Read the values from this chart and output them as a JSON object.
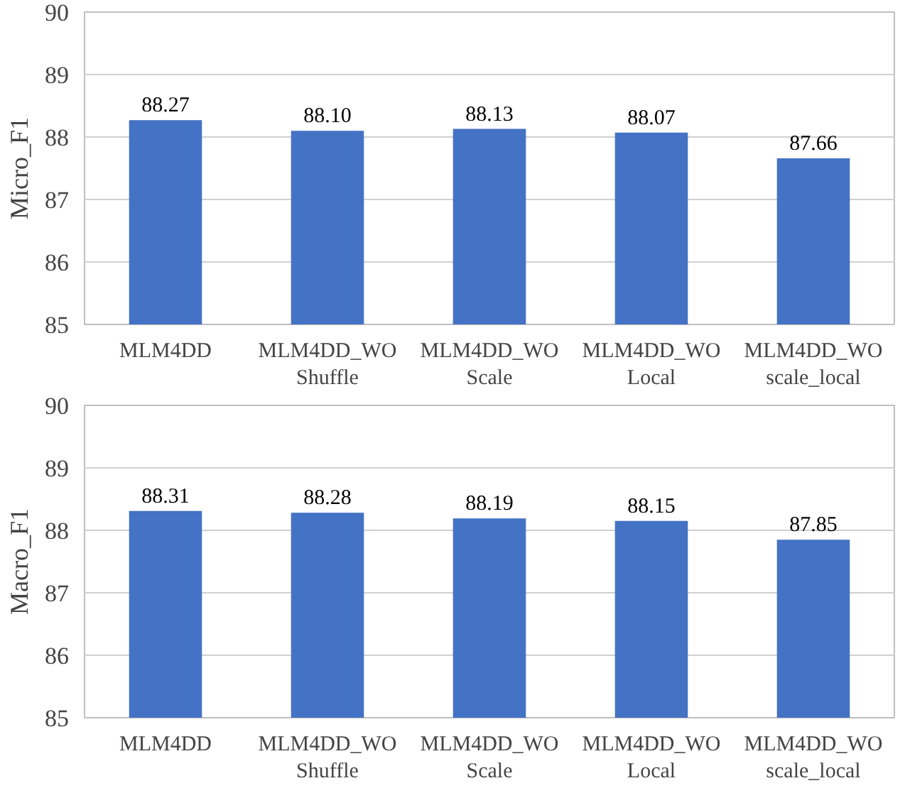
{
  "chart_data": [
    {
      "type": "bar",
      "ylabel": "Micro_F1",
      "categories": [
        "MLM4DD",
        "MLM4DD_WO\nShuffle",
        "MLM4DD_WO\nScale",
        "MLM4DD_WO\nLocal",
        "MLM4DD_WO\nscale_local"
      ],
      "values": [
        88.27,
        88.1,
        88.13,
        88.07,
        87.66
      ],
      "value_labels": [
        "88.27",
        "88.10",
        "88.13",
        "88.07",
        "87.66"
      ],
      "color": "#4472c4",
      "ylim": [
        85,
        90
      ],
      "yticks": [
        85,
        86,
        87,
        88,
        89,
        90
      ],
      "grid": "y"
    },
    {
      "type": "bar",
      "ylabel": "Macro_F1",
      "categories": [
        "MLM4DD",
        "MLM4DD_WO\nShuffle",
        "MLM4DD_WO\nScale",
        "MLM4DD_WO\nLocal",
        "MLM4DD_WO\nscale_local"
      ],
      "values": [
        88.31,
        88.28,
        88.19,
        88.15,
        87.85
      ],
      "value_labels": [
        "88.31",
        "88.28",
        "88.19",
        "88.15",
        "87.85"
      ],
      "color": "#4472c4",
      "ylim": [
        85,
        90
      ],
      "yticks": [
        85,
        86,
        87,
        88,
        89,
        90
      ],
      "grid": "y"
    }
  ]
}
